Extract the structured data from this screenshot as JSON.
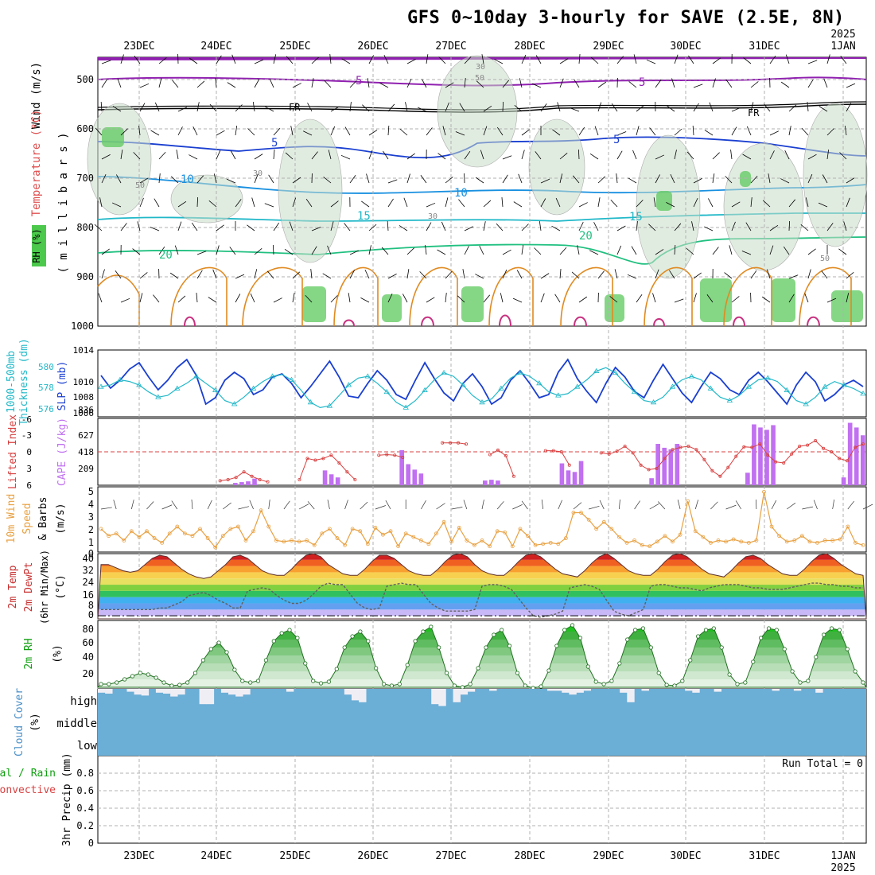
{
  "title": "GFS 0~10day 3-hourly for SAVE (2.5E, 8N)",
  "year_label": "2025",
  "day_labels": [
    "23DEC",
    "24DEC",
    "25DEC",
    "26DEC",
    "27DEC",
    "28DEC",
    "29DEC",
    "30DEC",
    "31DEC",
    "1JAN"
  ],
  "colors": {
    "grid": "#b0b0b0",
    "dark_blue": "#1a3fd0",
    "cyan": "#20b8c8",
    "lifted": "#d84040",
    "cape": "#c070f0",
    "wind": "#e8a040",
    "dewpt": "#606060",
    "rh_green": "#10c010",
    "cloud": "#6baed6",
    "cloud_clear": "#f0eef5",
    "purple": "#9020b0",
    "orange": "#e08a20"
  },
  "panels": {
    "upper_air": {
      "ylabel_1": "Wind (m/s)",
      "ylabel_2": "Temperature (°C)",
      "ylabel_3": "RH (%)",
      "ylabel_4": "( m i l l i b a r s )",
      "ticks": [
        "500",
        "600",
        "700",
        "800",
        "900",
        "1000"
      ],
      "isotherm_labels": [
        "5",
        "5",
        "FR",
        "FR",
        "5",
        "5",
        "10",
        "10",
        "15",
        "15",
        "20",
        "20",
        "30",
        "50",
        "30",
        "50",
        "30",
        "50"
      ]
    },
    "slp": {
      "ylabel_1": "1000-500mb",
      "ylabel_2": "Thickness (dm)",
      "ylabel_3": "SLP (mb)",
      "left_ticks": [
        "580",
        "578",
        "576"
      ],
      "right_ticks": [
        "1014",
        "1010",
        "1008",
        "1006"
      ]
    },
    "cape": {
      "ylabel_1": "Lifted Index",
      "ylabel_2": "CAPE (J/kg)",
      "left_ticks": [
        "-6",
        "-3",
        "0",
        "3",
        "6"
      ],
      "right_ticks": [
        "836",
        "627",
        "418",
        "209"
      ]
    },
    "wind10": {
      "ylabel_1": "10m Wind",
      "ylabel_2": "Speed",
      "ylabel_3": "& Barbs",
      "ylabel_4": "(m/s)",
      "ticks": [
        "5",
        "4",
        "3",
        "2",
        "1",
        "0"
      ]
    },
    "temp": {
      "ylabel_1": "2m Temp",
      "ylabel_2": "2m DewPt",
      "ylabel_3": "(6hr Min/Max)",
      "ylabel_4": "(°C)",
      "ticks": [
        "40",
        "32",
        "24",
        "16",
        "8",
        "0"
      ]
    },
    "rh": {
      "ylabel_1": "2m RH",
      "ylabel_2": "(%)",
      "ticks": [
        "80",
        "60",
        "40",
        "20"
      ]
    },
    "cloud": {
      "ylabel_1": "Cloud Cover",
      "ylabel_2": "(%)",
      "levels": [
        "high",
        "middle",
        "low"
      ]
    },
    "precip": {
      "ylabel_1": "Total / Rain",
      "ylabel_2": "Convective",
      "ylabel_3": "3hr Precip (mm)",
      "ticks": [
        "0.8",
        "0.6",
        "0.4",
        "0.2",
        "0"
      ],
      "run_total": "Run Total = 0"
    }
  },
  "chart_data": [
    {
      "type": "line",
      "name": "SLP and 1000-500mb thickness",
      "x": "3-hourly steps from 22DEC 12Z to 1JAN 06Z",
      "series": [
        {
          "name": "SLP (mb)",
          "values": [
            1010.8,
            1009.2,
            1010.2,
            1011.6,
            1012.4,
            1010.6,
            1009.0,
            1010.2,
            1011.8,
            1012.8,
            1010.8,
            1007.2,
            1008.0,
            1010.2,
            1011.2,
            1010.4,
            1008.4,
            1009.0,
            1010.6,
            1011.0,
            1009.8,
            1008.0,
            1009.4,
            1011.0,
            1012.6,
            1010.6,
            1008.2,
            1008.0,
            1009.8,
            1011.4,
            1010.2,
            1008.4,
            1007.8,
            1010.2,
            1012.4,
            1010.4,
            1008.6,
            1007.6,
            1009.8,
            1011.0,
            1009.4,
            1007.2,
            1008.0,
            1010.2,
            1011.4,
            1009.8,
            1008.0,
            1008.4,
            1011.2,
            1012.8,
            1010.4,
            1008.8,
            1007.4,
            1009.8,
            1011.8,
            1010.6,
            1008.8,
            1008.0,
            1010.2,
            1012.2,
            1010.4,
            1008.6,
            1007.4,
            1009.4,
            1011.2,
            1010.4,
            1009.0,
            1008.4,
            1010.2,
            1011.2,
            1010.0,
            1008.6,
            1007.2,
            1009.6,
            1011.2,
            1010.0,
            1007.6,
            1008.4,
            1009.6,
            1010.2,
            1009.4
          ]
        },
        {
          "name": "Thickness (dm)",
          "values": [
            578.6,
            578.8,
            579.4,
            579.2,
            578.8,
            578.0,
            577.4,
            577.6,
            578.4,
            579.0,
            579.8,
            579.0,
            578.2,
            577.0,
            576.6,
            577.4,
            578.4,
            579.2,
            579.8,
            580.0,
            579.4,
            578.2,
            576.8,
            576.2,
            576.4,
            577.6,
            578.8,
            579.6,
            579.8,
            579.0,
            578.0,
            576.8,
            576.2,
            577.0,
            578.2,
            579.4,
            580.2,
            579.8,
            578.8,
            577.6,
            576.8,
            577.2,
            578.4,
            579.6,
            580.2,
            579.8,
            579.0,
            578.0,
            577.6,
            577.8,
            578.6,
            579.4,
            580.4,
            580.8,
            580.2,
            579.0,
            578.0,
            577.0,
            576.8,
            577.4,
            578.6,
            579.4,
            579.8,
            579.4,
            578.4,
            577.4,
            577.0,
            577.6,
            578.6,
            579.4,
            579.6,
            579.2,
            578.2,
            577.0,
            576.6,
            577.4,
            578.6,
            579.2,
            578.8,
            578.4,
            577.8
          ]
        }
      ]
    },
    {
      "type": "bar",
      "name": "CAPE and Lifted Index",
      "x": "3-hourly steps from 22DEC 12Z to 1JAN 06Z",
      "series": [
        {
          "name": "CAPE (J/kg)",
          "values": [
            0,
            0,
            0,
            0,
            0,
            0,
            0,
            0,
            0,
            0,
            0,
            0,
            0,
            0,
            0,
            0,
            0,
            0,
            0,
            0,
            0,
            30,
            40,
            50,
            85,
            0,
            0,
            0,
            0,
            0,
            0,
            0,
            0,
            0,
            0,
            190,
            140,
            100,
            0,
            0,
            0,
            0,
            0,
            0,
            0,
            0,
            0,
            450,
            270,
            200,
            150,
            0,
            0,
            0,
            0,
            0,
            0,
            0,
            0,
            0,
            60,
            70,
            60,
            0,
            0,
            0,
            0,
            0,
            0,
            0,
            0,
            0,
            280,
            190,
            170,
            310,
            0,
            0,
            0,
            0,
            0,
            0,
            0,
            0,
            0,
            0,
            90,
            530,
            480,
            460,
            530,
            0,
            0,
            0,
            0,
            0,
            0,
            0,
            0,
            0,
            0,
            160,
            780,
            740,
            710,
            770,
            0,
            0,
            0,
            0,
            0,
            0,
            0,
            0,
            0,
            0,
            100,
            800,
            740,
            640
          ]
        },
        {
          "name": "Lifted Index",
          "values": [
            6,
            6,
            6,
            6,
            6,
            6,
            6,
            6,
            6,
            6,
            6,
            6,
            6,
            6,
            6,
            5.2,
            5.0,
            4.6,
            3.6,
            4.4,
            5.0,
            5.4,
            6,
            6,
            6,
            5.0,
            1.2,
            1.5,
            1.2,
            0.6,
            2.0,
            3.6,
            5.0,
            6,
            6,
            0.6,
            0.5,
            0.6,
            1.0,
            6,
            6,
            6,
            6,
            -1.6,
            -1.6,
            -1.6,
            -1.4,
            6,
            6,
            0.5,
            -0.3,
            0.7,
            4.4,
            6,
            6,
            6,
            -0.2,
            -0.2,
            0.0,
            2.4,
            6,
            6,
            6,
            0.2,
            0.4,
            -0.1,
            -1.0,
            0.2,
            2.4,
            3.2,
            3.0,
            1.2,
            -0.4,
            -0.8,
            -1.0,
            -0.4,
            1.4,
            3.4,
            4.4,
            2.8,
            0.8,
            -0.9,
            -0.8,
            -1.4,
            0.6,
            1.8,
            2.0,
            0.4,
            -1.0,
            -1.2,
            -2.0,
            -0.6,
            0.0,
            1.2,
            1.6,
            -0.8,
            -1.4
          ]
        }
      ]
    },
    {
      "type": "line",
      "name": "10m wind speed",
      "x": "3-hourly steps from 22DEC 12Z to 1JAN 06Z",
      "series": [
        {
          "name": "Speed (m/s)",
          "values": [
            2.0,
            1.4,
            1.6,
            1.0,
            1.8,
            1.3,
            1.8,
            1.2,
            0.8,
            1.6,
            2.2,
            1.6,
            1.4,
            2.0,
            1.2,
            0.4,
            1.4,
            2.0,
            2.2,
            1.0,
            1.8,
            3.6,
            2.2,
            1.0,
            0.9,
            1.0,
            0.9,
            1.0,
            0.6,
            1.6,
            2.0,
            1.2,
            0.6,
            2.0,
            1.8,
            0.7,
            2.1,
            1.5,
            1.8,
            0.5,
            1.6,
            1.3,
            1.0,
            0.7,
            1.6,
            2.6,
            0.9,
            2.1,
            1.0,
            0.6,
            1.0,
            0.5,
            1.8,
            1.7,
            0.5,
            2.0,
            1.4,
            0.6,
            0.7,
            0.8,
            0.7,
            1.2,
            3.4,
            3.4,
            2.8,
            2.0,
            2.6,
            2.0,
            1.3,
            0.8,
            1.0,
            0.6,
            0.5,
            0.9,
            1.4,
            0.9,
            1.5,
            4.4,
            1.8,
            1.3,
            0.8,
            1.0,
            0.9,
            1.1,
            0.9,
            0.8,
            1.0,
            5.2,
            2.2,
            1.4,
            0.9,
            1.0,
            1.4,
            0.9,
            0.8,
            1.0,
            1.0,
            1.1,
            2.2,
            0.8,
            0.6
          ]
        }
      ]
    },
    {
      "type": "area",
      "name": "2m temperature and dew point",
      "x": "3-hourly steps from 22DEC 12Z to 1JAN 06Z",
      "series": [
        {
          "name": "2m Temp (°C)",
          "values": [
            33,
            33,
            31,
            29,
            28,
            29,
            33,
            37,
            39,
            38,
            34,
            30,
            27,
            25,
            24,
            25,
            29,
            33,
            38,
            39,
            37,
            33,
            29,
            27,
            26,
            26,
            30,
            35,
            39,
            40,
            38,
            33,
            30,
            27,
            26,
            26,
            30,
            35,
            39,
            39,
            37,
            33,
            29,
            27,
            26,
            26,
            30,
            35,
            39,
            40,
            38,
            33,
            29,
            27,
            26,
            26,
            30,
            35,
            39,
            40,
            38,
            34,
            30,
            27,
            26,
            25,
            29,
            34,
            38,
            40,
            37,
            33,
            29,
            27,
            26,
            26,
            30,
            35,
            39,
            40,
            38,
            34,
            30,
            27,
            26,
            25,
            29,
            34,
            38,
            39,
            37,
            33,
            30,
            27,
            26,
            26,
            30,
            35,
            39,
            40,
            37,
            33,
            30,
            27,
            26
          ]
        },
        {
          "name": "2m DewPt (°C)",
          "values": [
            4,
            4,
            4,
            4,
            4,
            4,
            4,
            4,
            5,
            5,
            7,
            9,
            13,
            14,
            15,
            13,
            10,
            8,
            5,
            5,
            16,
            17,
            18,
            17,
            13,
            10,
            8,
            8,
            10,
            14,
            19,
            21,
            20,
            20,
            14,
            8,
            5,
            4,
            5,
            19,
            20,
            21,
            20,
            20,
            14,
            8,
            5,
            3,
            3,
            3,
            3,
            4,
            19,
            20,
            20,
            19,
            17,
            11,
            5,
            0,
            -1,
            0,
            1,
            3,
            18,
            19,
            20,
            19,
            17,
            10,
            3,
            1,
            0,
            2,
            4,
            19,
            20,
            20,
            19,
            18,
            18,
            17,
            16,
            18,
            19,
            20,
            20,
            20,
            19,
            18,
            18,
            17,
            17,
            17,
            18,
            19,
            20,
            21,
            21,
            20,
            20,
            19,
            19,
            18,
            18
          ]
        }
      ]
    },
    {
      "type": "area",
      "name": "2m relative humidity",
      "x": "3-hourly steps from 22DEC 12Z to 1JAN 06Z",
      "series": [
        {
          "name": "2m RH (%)",
          "values": [
            14,
            14,
            16,
            20,
            24,
            28,
            26,
            22,
            16,
            12,
            13,
            16,
            28,
            44,
            58,
            66,
            54,
            32,
            18,
            16,
            18,
            44,
            68,
            78,
            82,
            72,
            40,
            18,
            15,
            17,
            33,
            60,
            74,
            80,
            68,
            34,
            14,
            12,
            14,
            38,
            68,
            80,
            86,
            60,
            28,
            12,
            10,
            14,
            34,
            60,
            76,
            82,
            62,
            28,
            12,
            9,
            11,
            31,
            62,
            82,
            88,
            72,
            36,
            17,
            14,
            18,
            40,
            70,
            82,
            84,
            60,
            28,
            13,
            12,
            18,
            44,
            74,
            82,
            84,
            60,
            26,
            14,
            16,
            42,
            72,
            84,
            82,
            58,
            30,
            16,
            18,
            48,
            76,
            84,
            82,
            58,
            30,
            16
          ]
        }
      ]
    },
    {
      "type": "bar",
      "name": "Cloud cover",
      "x": "3-hourly steps from 22DEC 12Z to 1JAN 06Z",
      "series": [
        {
          "name": "High cloud (%)",
          "values": [
            20,
            25,
            0,
            0,
            15,
            30,
            35,
            0,
            20,
            25,
            40,
            30,
            0,
            0,
            80,
            80,
            0,
            20,
            30,
            40,
            30,
            0,
            0,
            0,
            0,
            0,
            15,
            0,
            0,
            0,
            0,
            0,
            0,
            0,
            30,
            60,
            70,
            0,
            0,
            0,
            0,
            0,
            0,
            0,
            0,
            0,
            80,
            90,
            0,
            70,
            30,
            15,
            0,
            0,
            10,
            0,
            0,
            0,
            0,
            0,
            0,
            0,
            10,
            10,
            20,
            30,
            20,
            10,
            0,
            0,
            0,
            0,
            20,
            70,
            0,
            10,
            0,
            0,
            0,
            0,
            0,
            10,
            20,
            0,
            0,
            15,
            0,
            0,
            0,
            0,
            0,
            0,
            0,
            10,
            0,
            0,
            10,
            0,
            0,
            20,
            0,
            0,
            0,
            0,
            0,
            0
          ]
        },
        {
          "name": "Middle cloud (%)",
          "values": []
        },
        {
          "name": "Low cloud (%)",
          "values": []
        }
      ]
    },
    {
      "type": "bar",
      "name": "3hr precipitation",
      "x": "3-hourly steps from 22DEC 12Z to 1JAN 06Z",
      "series": [
        {
          "name": "Total (mm)",
          "values": [
            0
          ]
        },
        {
          "name": "Convective (mm)",
          "values": [
            0
          ]
        }
      ]
    }
  ]
}
